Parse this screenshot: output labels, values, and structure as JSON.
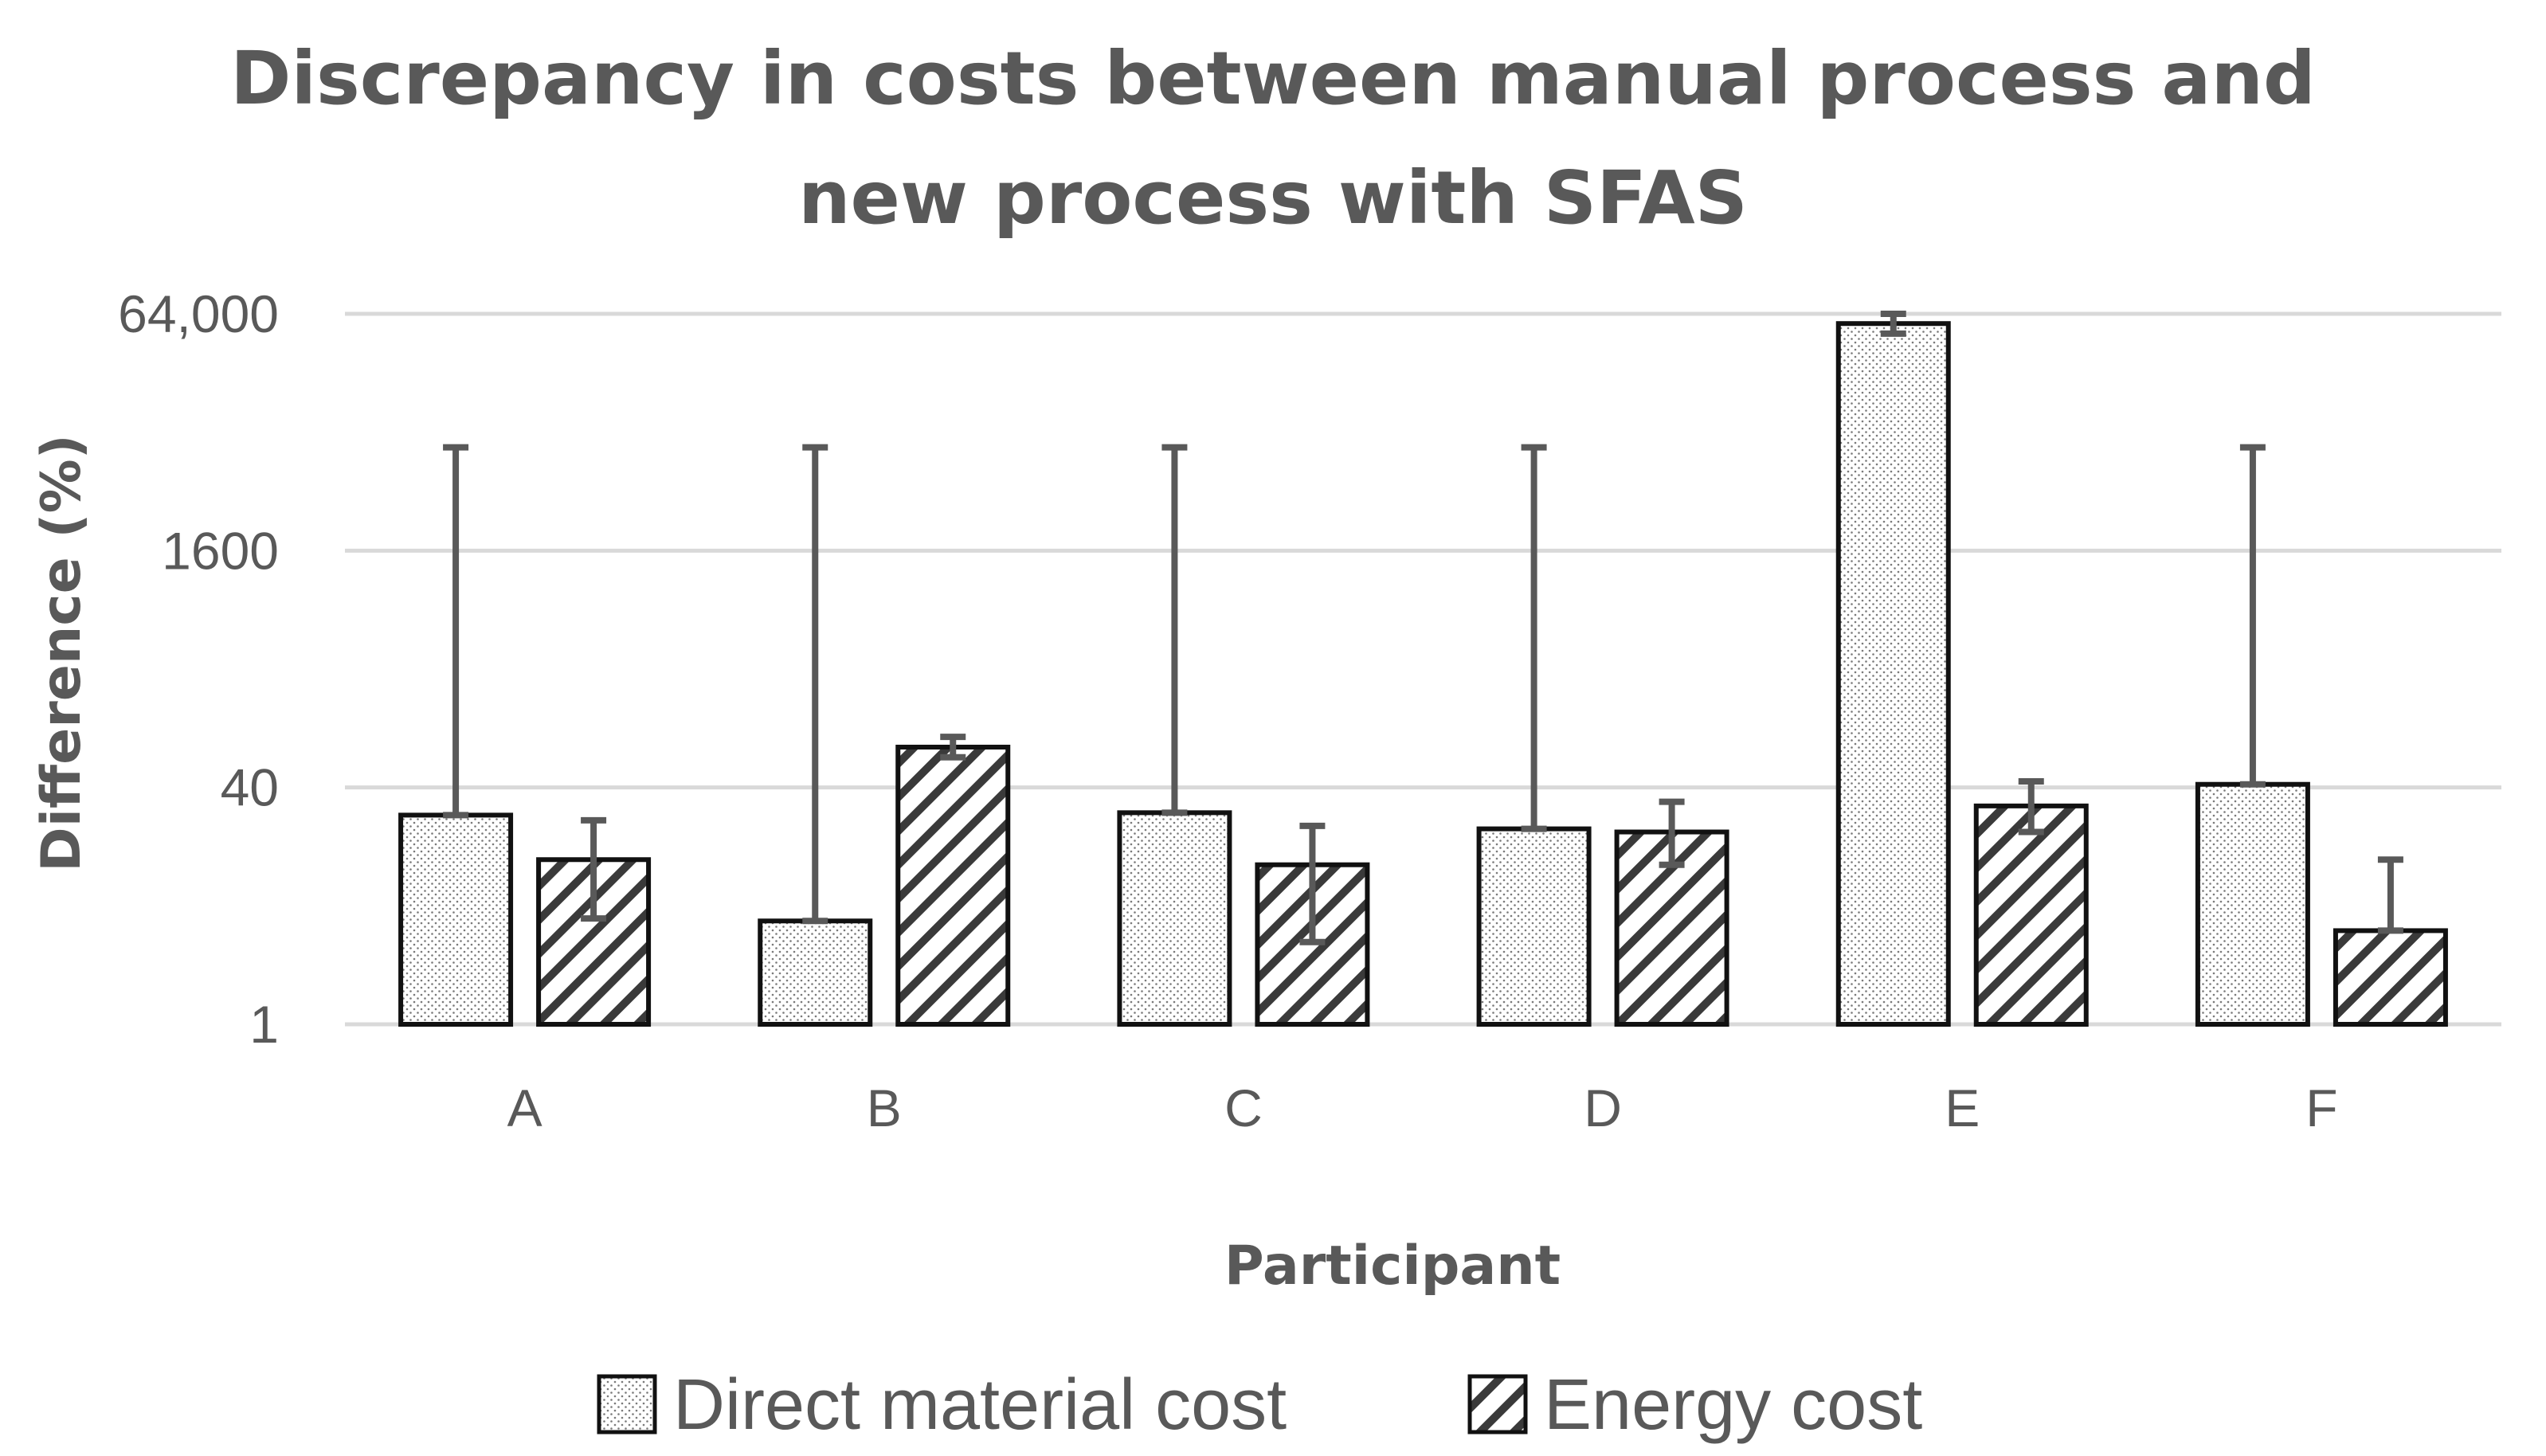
{
  "chart_data": {
    "type": "bar",
    "title_lines": [
      "Discrepancy in costs between manual process and",
      "new process with SFAS"
    ],
    "xlabel": "Participant",
    "ylabel": "Difference  (%)",
    "scale": "log",
    "yticks": [
      1,
      40,
      1600,
      64000
    ],
    "ytick_labels": [
      "1",
      "40",
      "1600",
      "64,000"
    ],
    "ylim": [
      1,
      64000
    ],
    "categories": [
      "A",
      "B",
      "C",
      "D",
      "E",
      "F"
    ],
    "series": [
      {
        "name": "Direct material cost",
        "pattern": "dots",
        "values": [
          26,
          5,
          27,
          21,
          55000,
          42
        ],
        "error_low": [
          26,
          5,
          27,
          21,
          47000,
          42
        ],
        "error_high": [
          8000,
          8000,
          8000,
          8000,
          64000,
          8000
        ]
      },
      {
        "name": "Energy cost",
        "pattern": "hatch",
        "values": [
          13,
          75,
          12,
          20,
          30,
          4.3
        ],
        "error_low": [
          5.2,
          64,
          3.6,
          12,
          20,
          4.3
        ],
        "error_high": [
          24,
          88,
          22,
          32,
          44,
          13
        ]
      }
    ],
    "legend_position": "bottom-center",
    "grid": true
  }
}
